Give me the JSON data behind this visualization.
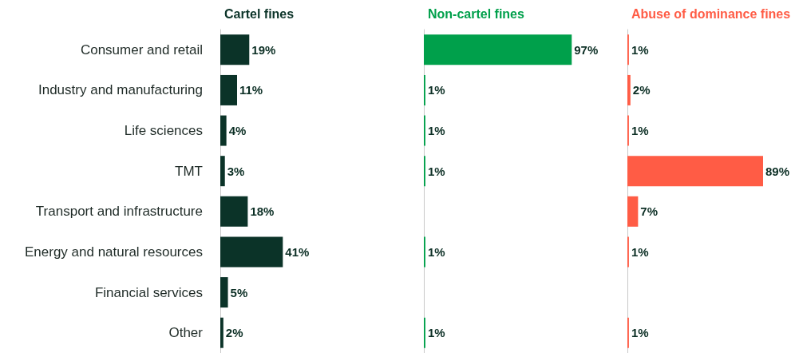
{
  "chart_data": [
    {
      "type": "bar",
      "orientation": "horizontal",
      "title": "Cartel fines",
      "categories": [
        "Consumer and retail",
        "Industry and manufacturing",
        "Life sciences",
        "TMT",
        "Transport and infrastructure",
        "Energy and natural resources",
        "Financial services",
        "Other"
      ],
      "color": "#0b3328",
      "values": [
        19,
        11,
        4,
        3,
        18,
        41,
        5,
        2
      ],
      "value_labels": [
        "19%",
        "11%",
        "4%",
        "3%",
        "18%",
        "41%",
        "5%",
        "2%"
      ],
      "tick_labels": "y"
    },
    {
      "type": "bar",
      "orientation": "horizontal",
      "title": "Non-cartel fines",
      "color": "#00a04b",
      "values": [
        97,
        1,
        1,
        1,
        null,
        1,
        null,
        1
      ],
      "value_labels": [
        "97%",
        "1%",
        "1%",
        "1%",
        null,
        "1%",
        null,
        "1%"
      ],
      "tick_labels": false
    },
    {
      "type": "bar",
      "orientation": "horizontal",
      "title": "Abuse of dominance fines",
      "color": "#ff5c45",
      "values": [
        1,
        2,
        1,
        89,
        7,
        1,
        null,
        1
      ],
      "value_labels": [
        "1%",
        "2%",
        "1%",
        "89%",
        "7%",
        "1%",
        null,
        "1%"
      ],
      "tick_labels": false
    }
  ]
}
